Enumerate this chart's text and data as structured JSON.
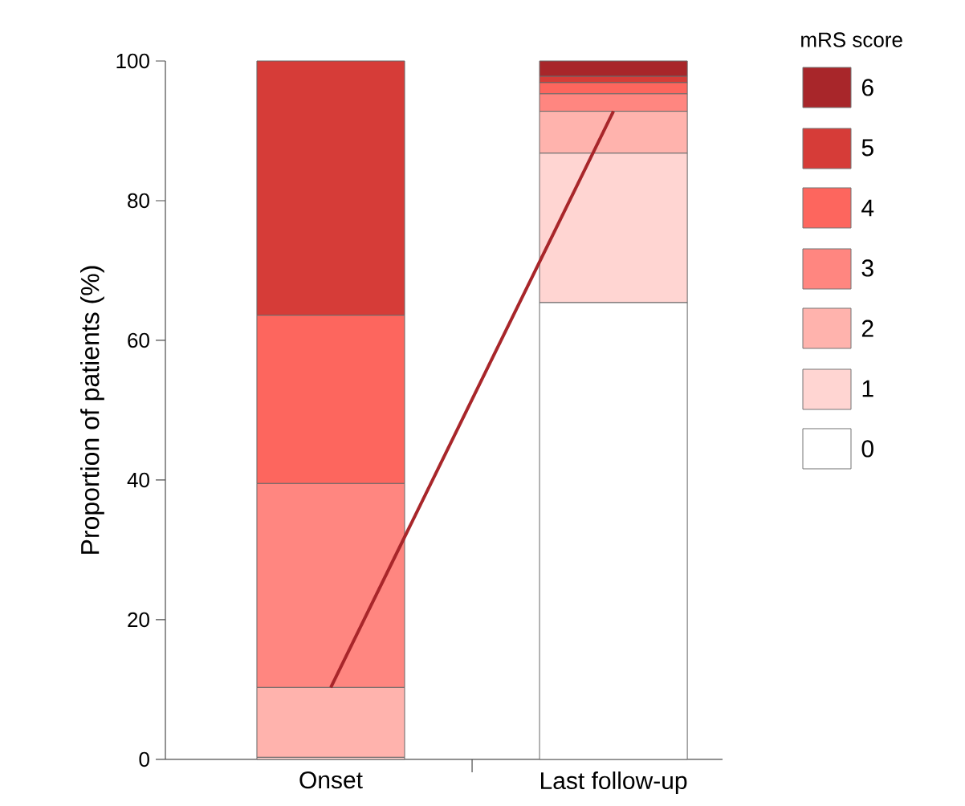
{
  "chart_data": {
    "type": "bar",
    "stacked": true,
    "ylabel": "Proportion of patients (%)",
    "legend_title": "mRS score",
    "legend": "right",
    "categories": [
      "Onset",
      "Last follow-up"
    ],
    "ylim": [
      0,
      100
    ],
    "yticks": [
      0,
      20,
      40,
      60,
      80,
      100
    ],
    "series": [
      {
        "name": "0",
        "color": "#ffffff",
        "values": [
          0,
          65.4
        ]
      },
      {
        "name": "1",
        "color": "#ffd5d2",
        "values": [
          0.3,
          21.4
        ]
      },
      {
        "name": "2",
        "color": "#ffb3ad",
        "values": [
          10.0,
          6.0
        ]
      },
      {
        "name": "3",
        "color": "#ff8680",
        "values": [
          29.2,
          2.5
        ]
      },
      {
        "name": "4",
        "color": "#fd665e",
        "values": [
          24.1,
          1.6
        ]
      },
      {
        "name": "5",
        "color": "#d63c38",
        "values": [
          36.4,
          0.9
        ]
      },
      {
        "name": "6",
        "color": "#a8262a",
        "values": [
          0,
          2.2
        ]
      },
      {
        "type": "line",
        "color": "#a8262a",
        "values": [
          10.3,
          92.8
        ]
      }
    ]
  }
}
